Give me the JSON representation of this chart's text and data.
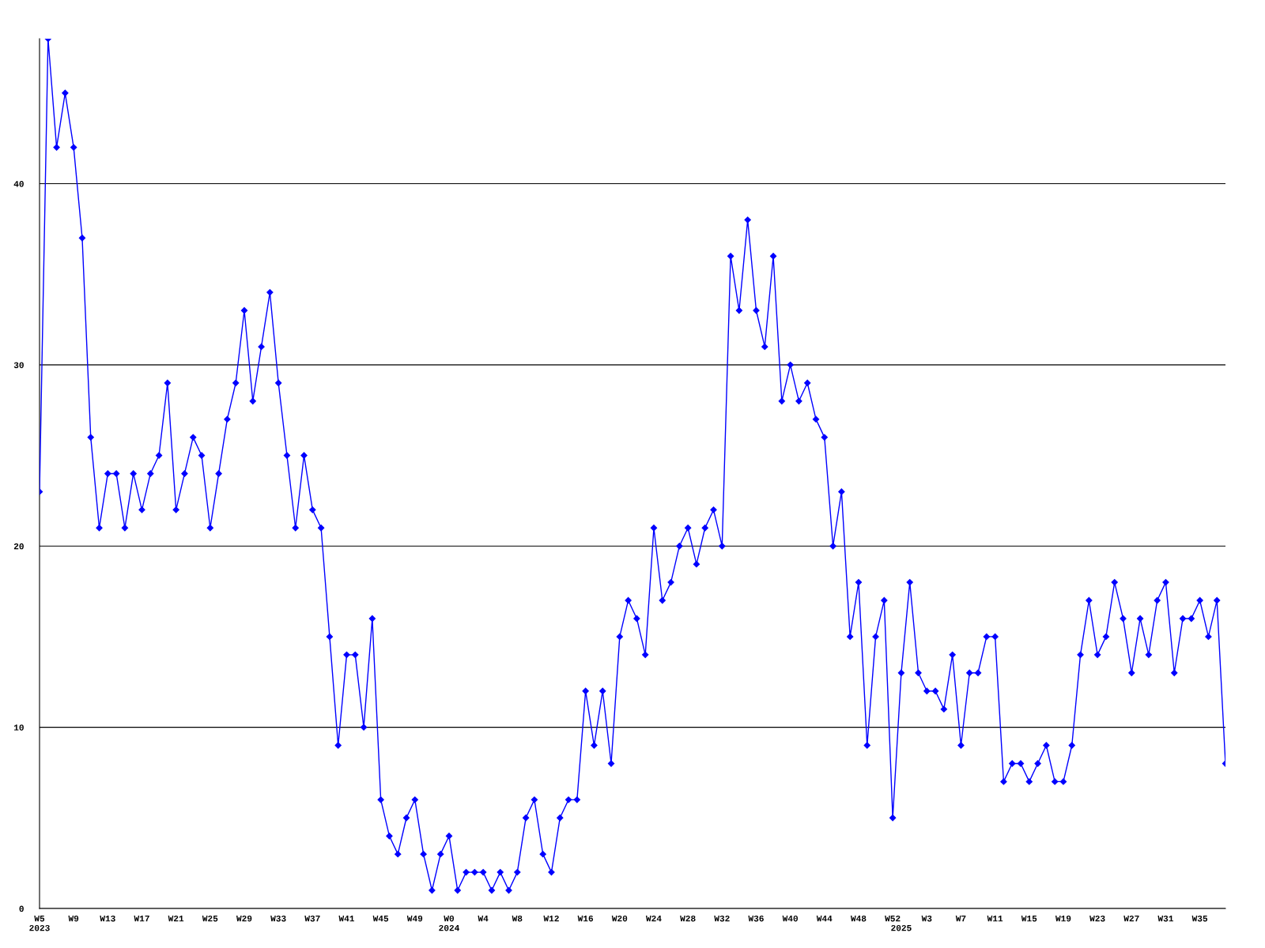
{
  "chart_data": {
    "type": "line",
    "color": "#0000ff",
    "marker": "diamond",
    "line_style": "solid",
    "grid": "y",
    "ylim": [
      0,
      48
    ],
    "yticks": [
      0,
      10,
      20,
      30,
      40
    ],
    "categories": [
      "W5\n2023",
      null,
      null,
      null,
      "W9",
      null,
      null,
      null,
      "W13",
      null,
      null,
      null,
      "W17",
      null,
      null,
      null,
      "W21",
      null,
      null,
      null,
      "W25",
      null,
      null,
      null,
      "W29",
      null,
      null,
      null,
      "W33",
      null,
      null,
      null,
      "W37",
      null,
      null,
      null,
      "W41",
      null,
      null,
      null,
      "W45",
      null,
      null,
      null,
      "W49",
      null,
      null,
      null,
      "W0\n2024",
      null,
      null,
      null,
      "W4",
      null,
      null,
      null,
      "W8",
      null,
      null,
      null,
      "W12",
      null,
      null,
      null,
      "W16",
      null,
      null,
      null,
      "W20",
      null,
      null,
      null,
      "W24",
      null,
      null,
      null,
      "W28",
      null,
      null,
      null,
      "W32",
      null,
      null,
      null,
      "W36",
      null,
      null,
      null,
      "W40",
      null,
      null,
      null,
      "W44",
      null,
      null,
      null,
      "W48",
      null,
      null,
      null,
      "W52",
      "\n2025",
      null,
      null,
      "W3",
      null,
      null,
      null,
      "W7",
      null,
      null,
      null,
      "W11",
      null,
      null,
      null,
      "W15",
      null,
      null,
      null,
      "W19",
      null,
      null,
      null,
      "W23",
      null,
      null,
      null,
      "W27",
      null,
      null,
      null,
      "W31",
      null,
      null,
      null,
      "W35",
      null,
      null,
      null
    ],
    "values": [
      23,
      48,
      42,
      45,
      42,
      37,
      26,
      21,
      24,
      24,
      21,
      24,
      22,
      24,
      25,
      29,
      22,
      24,
      26,
      25,
      21,
      24,
      27,
      29,
      33,
      28,
      31,
      34,
      29,
      25,
      21,
      25,
      22,
      21,
      15,
      9,
      14,
      14,
      10,
      16,
      6,
      4,
      3,
      5,
      6,
      3,
      1,
      3,
      4,
      1,
      2,
      2,
      2,
      1,
      2,
      1,
      2,
      5,
      6,
      3,
      2,
      5,
      6,
      6,
      12,
      9,
      12,
      8,
      15,
      17,
      16,
      14,
      21,
      17,
      18,
      20,
      21,
      19,
      21,
      22,
      20,
      36,
      33,
      38,
      33,
      31,
      36,
      28,
      30,
      28,
      29,
      27,
      26,
      20,
      23,
      15,
      18,
      9,
      15,
      17,
      5,
      13,
      18,
      13,
      12,
      12,
      11,
      14,
      9,
      13,
      13,
      15,
      15,
      7,
      8,
      8,
      7,
      8,
      9,
      7,
      7,
      9,
      14,
      17,
      14,
      15,
      18,
      16,
      13,
      16,
      14,
      17,
      18,
      13,
      16,
      16,
      17,
      15,
      17,
      8
    ]
  }
}
